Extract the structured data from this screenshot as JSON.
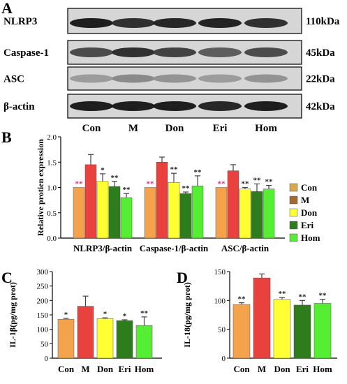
{
  "panels": {
    "a": "A",
    "b": "B",
    "c": "C",
    "d": "D"
  },
  "blot": {
    "rows": [
      {
        "label": "NLRP3",
        "size": "110kDa",
        "intensity": [
          0.95,
          0.85,
          0.9,
          0.92,
          0.85
        ]
      },
      {
        "label": "Caspase-1",
        "size": "45kDa",
        "intensity": [
          0.7,
          0.85,
          0.75,
          0.6,
          0.7
        ]
      },
      {
        "label": "ASC",
        "size": "22kDa",
        "intensity": [
          0.25,
          0.35,
          0.3,
          0.25,
          0.3
        ]
      },
      {
        "label": "β-actin",
        "size": "42kDa",
        "intensity": [
          0.95,
          0.95,
          0.95,
          0.9,
          0.95
        ]
      }
    ],
    "lanes": [
      "Con",
      "M",
      "Don",
      "Eri",
      "Hom"
    ]
  },
  "colors": {
    "Con": "#f4a34c",
    "M": "#e8413e",
    "Don": "#ffff33",
    "Eri": "#2d7d1c",
    "Hom": "#55ee33",
    "Con_legend": "#d9a84a",
    "M_legend": "#a5682f",
    "star_pink": "#cc3377",
    "star_dark": "#222222",
    "error": "#444444"
  },
  "chart_data": [
    {
      "type": "bar",
      "panel": "B",
      "ylabel": "Relative protien expression",
      "ylim": [
        0,
        2.0
      ],
      "yticks": [
        "0.0",
        "0.5",
        "1.0",
        "1.5",
        "2.0"
      ],
      "categories": [
        "NLRP3/β-actin",
        "Caspase-1/β-actin",
        "ASC/β-actin"
      ],
      "series": [
        {
          "name": "Con",
          "values": [
            1.0,
            1.0,
            1.0
          ],
          "errors": [
            0,
            0,
            0
          ],
          "sig": [
            "**",
            "**",
            "**"
          ]
        },
        {
          "name": "M",
          "values": [
            1.45,
            1.5,
            1.33
          ],
          "errors": [
            0.2,
            0.1,
            0.12
          ],
          "sig": [
            "",
            "",
            ""
          ]
        },
        {
          "name": "Don",
          "values": [
            1.12,
            1.1,
            0.97
          ],
          "errors": [
            0.15,
            0.18,
            0.03
          ],
          "sig": [
            "*",
            "**",
            "**"
          ]
        },
        {
          "name": "Eri",
          "values": [
            1.02,
            0.88,
            0.92
          ],
          "errors": [
            0.1,
            0.03,
            0.15
          ],
          "sig": [
            "**",
            "**",
            "**"
          ]
        },
        {
          "name": "Hom",
          "values": [
            0.8,
            1.03,
            0.97
          ],
          "errors": [
            0.08,
            0.2,
            0.07
          ],
          "sig": [
            "**",
            "**",
            "**"
          ]
        }
      ],
      "legend": [
        "Con",
        "M",
        "Don",
        "Eri",
        "Hom"
      ],
      "legend_position": "right"
    },
    {
      "type": "bar",
      "panel": "C",
      "ylabel": "IL-1β(pg/mg prot)",
      "ylim": [
        0,
        300
      ],
      "yticks": [
        "0",
        "50",
        "100",
        "150",
        "200",
        "250",
        "300"
      ],
      "categories": [
        "Con",
        "M",
        "Don",
        "Eri",
        "Hom"
      ],
      "values": [
        135,
        180,
        137,
        130,
        113
      ],
      "errors": [
        3,
        35,
        3,
        3,
        30
      ],
      "sig": [
        "*",
        "",
        "*",
        "*",
        "**"
      ]
    },
    {
      "type": "bar",
      "panel": "D",
      "ylabel": "IL-18(pg/mg prot)",
      "ylim": [
        0,
        150
      ],
      "yticks": [
        "0",
        "50",
        "100",
        "150"
      ],
      "categories": [
        "Con",
        "M",
        "Don",
        "Eri",
        "Hom"
      ],
      "values": [
        93,
        139,
        102,
        92,
        95
      ],
      "errors": [
        3,
        7,
        3,
        8,
        7
      ],
      "sig": [
        "**",
        "",
        "**",
        "**",
        "**"
      ]
    }
  ]
}
